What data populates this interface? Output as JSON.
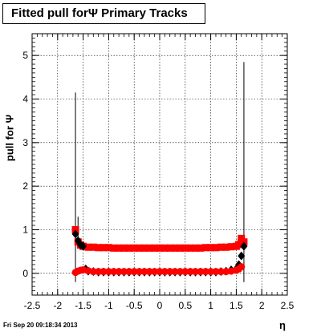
{
  "title": "Fitted pull forΨ   Primary Tracks",
  "timestamp": "Fri Sep 20 09:18:34 2013",
  "chart_data": {
    "type": "scatter",
    "xlabel": "η",
    "ylabel": "pull for Ψ",
    "xlim": [
      -2.5,
      2.5
    ],
    "ylim": [
      -0.5,
      5.5
    ],
    "grid": true,
    "x_ticks": [
      "-2.5",
      "-2",
      "-1.5",
      "-1",
      "-0.5",
      "0",
      "0.5",
      "1",
      "1.5",
      "2",
      "2.5"
    ],
    "y_ticks": [
      "0",
      "1",
      "2",
      "3",
      "4",
      "5"
    ],
    "series": [
      {
        "marker": "square",
        "color": "#ff0000",
        "x": [
          -1.65,
          -1.6,
          -1.55,
          -1.5,
          -1.4,
          -1.3,
          -1.2,
          -1.1,
          -1.0,
          -0.9,
          -0.8,
          -0.7,
          -0.6,
          -0.5,
          -0.4,
          -0.3,
          -0.2,
          -0.1,
          0.0,
          0.1,
          0.2,
          0.3,
          0.4,
          0.5,
          0.6,
          0.7,
          0.8,
          0.9,
          1.0,
          1.1,
          1.2,
          1.3,
          1.4,
          1.5,
          1.55,
          1.6,
          1.65
        ],
        "y": [
          1.0,
          0.72,
          0.65,
          0.62,
          0.6,
          0.6,
          0.59,
          0.59,
          0.59,
          0.58,
          0.58,
          0.58,
          0.58,
          0.58,
          0.58,
          0.58,
          0.58,
          0.58,
          0.58,
          0.58,
          0.58,
          0.58,
          0.58,
          0.58,
          0.58,
          0.58,
          0.58,
          0.59,
          0.59,
          0.59,
          0.6,
          0.6,
          0.61,
          0.62,
          0.66,
          0.8,
          0.72
        ]
      },
      {
        "marker": "diamond",
        "color": "#000000",
        "x": [
          -1.65,
          -1.6,
          -1.55,
          -1.5,
          -1.45,
          -1.4,
          -1.3,
          -1.2,
          -1.1,
          -1.0,
          -0.9,
          -0.8,
          -0.7,
          -0.6,
          -0.5,
          -0.4,
          -0.3,
          -0.2,
          -0.1,
          0.0,
          0.1,
          0.2,
          0.3,
          0.4,
          0.5,
          0.6,
          0.7,
          0.8,
          0.9,
          1.0,
          1.1,
          1.2,
          1.3,
          1.4,
          1.5,
          1.55,
          1.6,
          1.65
        ],
        "y": [
          0.9,
          0.75,
          0.65,
          0.62,
          0.1,
          0.05,
          0.04,
          0.03,
          0.03,
          0.03,
          0.03,
          0.03,
          0.03,
          0.03,
          0.03,
          0.03,
          0.03,
          0.03,
          0.03,
          0.03,
          0.03,
          0.03,
          0.03,
          0.03,
          0.03,
          0.03,
          0.03,
          0.03,
          0.03,
          0.03,
          0.03,
          0.04,
          0.05,
          0.08,
          0.1,
          0.2,
          0.4,
          0.62
        ]
      },
      {
        "marker": "circle",
        "color": "#ff0000",
        "x": [
          -1.65,
          -1.6,
          -1.55,
          -1.5,
          -1.4,
          -1.3,
          -1.2,
          -1.1,
          -1.0,
          -0.9,
          -0.8,
          -0.7,
          -0.6,
          -0.5,
          -0.4,
          -0.3,
          -0.2,
          -0.1,
          0.0,
          0.1,
          0.2,
          0.3,
          0.4,
          0.5,
          0.6,
          0.7,
          0.8,
          0.9,
          1.0,
          1.1,
          1.2,
          1.3,
          1.4,
          1.5,
          1.55,
          1.6
        ],
        "y": [
          0.02,
          0.05,
          0.07,
          0.08,
          0.06,
          0.04,
          0.04,
          0.04,
          0.04,
          0.04,
          0.04,
          0.04,
          0.04,
          0.04,
          0.04,
          0.04,
          0.04,
          0.04,
          0.04,
          0.04,
          0.04,
          0.04,
          0.04,
          0.04,
          0.04,
          0.04,
          0.04,
          0.04,
          0.04,
          0.04,
          0.04,
          0.04,
          0.05,
          0.07,
          0.1,
          0.15
        ]
      }
    ],
    "error_bars": [
      {
        "x": -1.65,
        "low": -0.2,
        "high": 4.15
      },
      {
        "x": -1.6,
        "low": 0.7,
        "high": 1.3
      },
      {
        "x": 1.65,
        "low": -0.2,
        "high": 4.85
      }
    ]
  }
}
